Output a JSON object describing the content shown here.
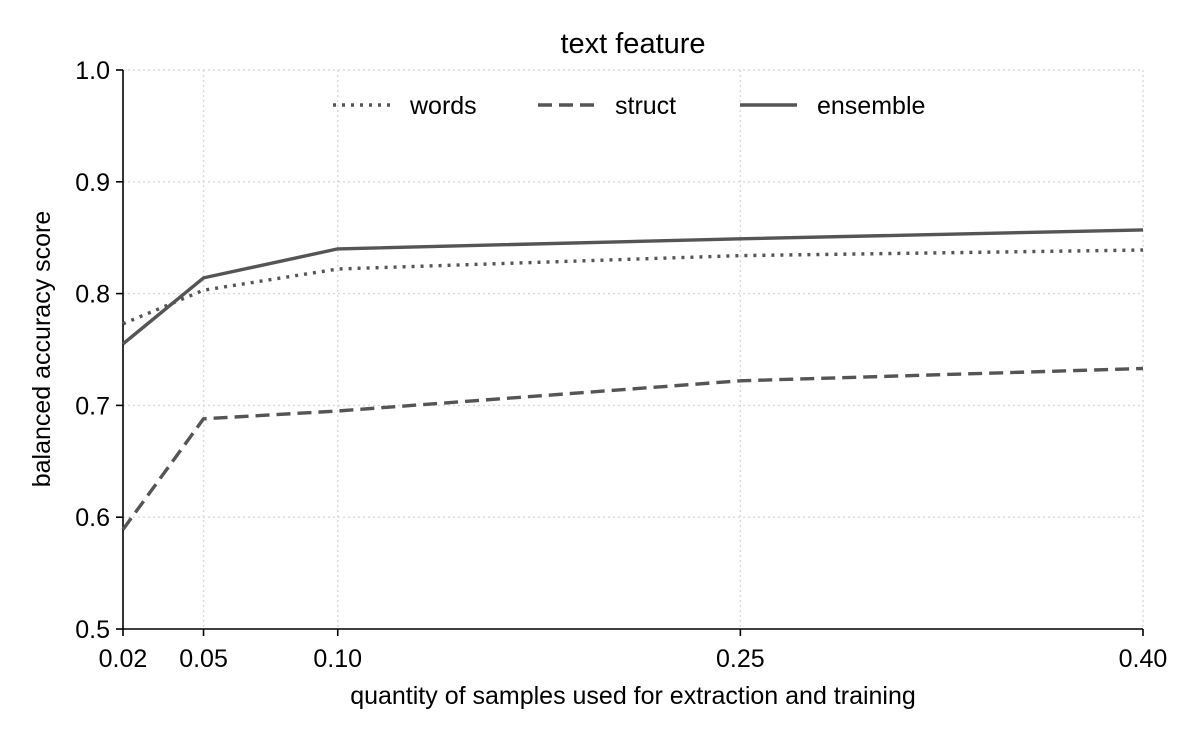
{
  "chart_data": {
    "type": "line",
    "title": "text feature",
    "xlabel": "quantity of samples used for extraction and training",
    "ylabel": "balanced accuracy score",
    "x": [
      0.02,
      0.05,
      0.1,
      0.25,
      0.4
    ],
    "x_tick_labels": [
      "0.02",
      "0.05",
      "0.10",
      "0.25",
      "0.40"
    ],
    "xlim": [
      0.02,
      0.4
    ],
    "ylim": [
      0.5,
      1.0
    ],
    "y_ticks": [
      0.5,
      0.6,
      0.7,
      0.8,
      0.9,
      1.0
    ],
    "y_tick_labels": [
      "0.5",
      "0.6",
      "0.7",
      "0.8",
      "0.9",
      "1.0"
    ],
    "grid": true,
    "legend_position": "top-center",
    "series": [
      {
        "name": "words",
        "line_style": "dotted",
        "color": "#555555",
        "values": [
          0.773,
          0.803,
          0.822,
          0.834,
          0.839
        ]
      },
      {
        "name": "struct",
        "line_style": "dashed",
        "color": "#555555",
        "values": [
          0.589,
          0.688,
          0.695,
          0.722,
          0.733
        ]
      },
      {
        "name": "ensemble",
        "line_style": "solid",
        "color": "#555555",
        "values": [
          0.755,
          0.814,
          0.84,
          0.849,
          0.857
        ]
      }
    ]
  }
}
